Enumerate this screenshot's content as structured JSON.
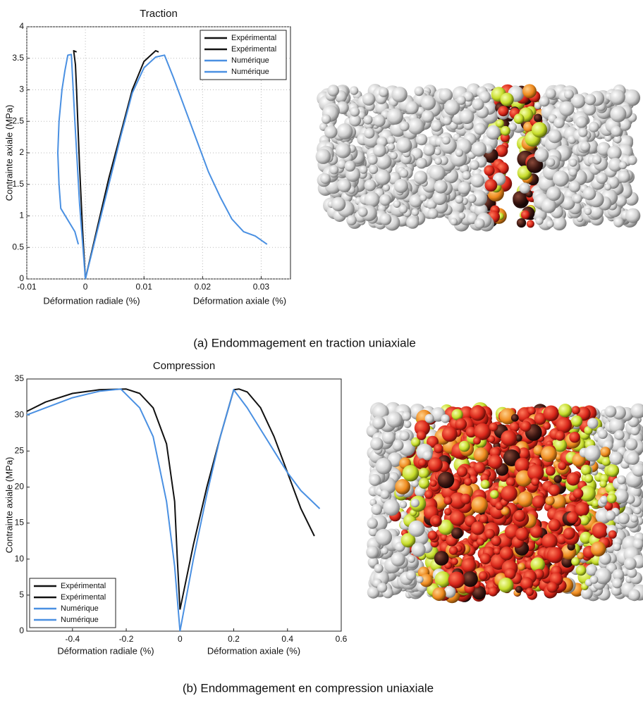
{
  "chart_data": [
    {
      "type": "line",
      "title": "Traction",
      "ylabel": "Contrainte axiale (MPa)",
      "xlabels": [
        "Déformation radiale (%)",
        "Déformation axiale (%)"
      ],
      "xlim": [
        -0.01,
        0.035
      ],
      "xticks": [
        -0.01,
        0,
        0.01,
        0.02,
        0.03
      ],
      "ylim": [
        0,
        4
      ],
      "yticks": [
        0,
        0.5,
        1,
        1.5,
        2,
        2.5,
        3,
        3.5,
        4
      ],
      "grid": true,
      "legend": "upper right",
      "series": [
        {
          "name": "Expérimental",
          "color": "#111111",
          "x": [
            0,
            -0.0005,
            -0.001,
            -0.0013,
            -0.0015,
            -0.0017,
            -0.002,
            -0.0015
          ],
          "values": [
            0,
            0.8,
            1.8,
            2.5,
            3.0,
            3.4,
            3.62,
            3.6
          ]
        },
        {
          "name": "Expérimental",
          "color": "#111111",
          "x": [
            0,
            0.002,
            0.004,
            0.006,
            0.008,
            0.01,
            0.012,
            0.0125
          ],
          "values": [
            0,
            0.8,
            1.6,
            2.3,
            3.0,
            3.45,
            3.62,
            3.6
          ]
        },
        {
          "name": "Numérique",
          "color": "#4a90e2",
          "x": [
            -0.0012,
            -0.0018,
            -0.0042,
            -0.0045,
            -0.0047,
            -0.0045,
            -0.004,
            -0.0035,
            -0.003,
            -0.0024,
            -0.0018,
            -0.001,
            0
          ],
          "values": [
            0.55,
            0.75,
            1.12,
            1.5,
            2.0,
            2.5,
            3.0,
            3.3,
            3.55,
            3.56,
            2.5,
            1.2,
            0
          ]
        },
        {
          "name": "Numérique",
          "color": "#4a90e2",
          "x": [
            0,
            0.002,
            0.004,
            0.006,
            0.008,
            0.01,
            0.012,
            0.0135,
            0.015,
            0.017,
            0.019,
            0.021,
            0.023,
            0.025,
            0.027,
            0.029,
            0.031
          ],
          "values": [
            0,
            0.75,
            1.5,
            2.25,
            2.95,
            3.35,
            3.52,
            3.55,
            3.2,
            2.7,
            2.2,
            1.7,
            1.3,
            0.95,
            0.75,
            0.68,
            0.55
          ]
        }
      ]
    },
    {
      "type": "line",
      "title": "Compression",
      "ylabel": "Contrainte axiale (MPa)",
      "xlabels": [
        "Déformation radiale (%)",
        "Déformation axiale (%)"
      ],
      "xlim": [
        -0.57,
        0.6
      ],
      "xticks": [
        -0.4,
        -0.2,
        0,
        0.2,
        0.4,
        0.6
      ],
      "ylim": [
        0,
        35
      ],
      "yticks": [
        0,
        5,
        10,
        15,
        20,
        25,
        30,
        35
      ],
      "grid": false,
      "legend": "lower left",
      "series": [
        {
          "name": "Expérimental",
          "color": "#111111",
          "x": [
            -0.57,
            -0.5,
            -0.4,
            -0.3,
            -0.2,
            -0.15,
            -0.1,
            -0.05,
            -0.02,
            -0.01,
            0
          ],
          "values": [
            30.5,
            31.8,
            33,
            33.5,
            33.6,
            33,
            31,
            26,
            18,
            10,
            3
          ]
        },
        {
          "name": "Expérimental",
          "color": "#111111",
          "x": [
            0,
            0.05,
            0.1,
            0.15,
            0.2,
            0.22,
            0.25,
            0.3,
            0.35,
            0.4,
            0.45,
            0.5
          ],
          "values": [
            3,
            12,
            20,
            27,
            33.5,
            33.6,
            33.2,
            31,
            27,
            22,
            17,
            13.2
          ]
        },
        {
          "name": "Numérique",
          "color": "#4a90e2",
          "x": [
            -0.57,
            -0.5,
            -0.4,
            -0.3,
            -0.22,
            -0.15,
            -0.1,
            -0.05,
            -0.02,
            0
          ],
          "values": [
            30,
            31,
            32.4,
            33.3,
            33.6,
            31,
            27,
            18,
            9,
            0
          ]
        },
        {
          "name": "Numérique",
          "color": "#4a90e2",
          "x": [
            0,
            0.05,
            0.1,
            0.15,
            0.2,
            0.25,
            0.3,
            0.35,
            0.4,
            0.45,
            0.52
          ],
          "values": [
            0,
            10,
            19,
            27,
            33.5,
            31,
            28,
            25,
            22,
            19.5,
            17
          ]
        }
      ]
    }
  ],
  "captions": [
    "(a)   Endommagement en traction uniaxiale",
    "(b)   Endommagement en compression uniaxiale"
  ]
}
